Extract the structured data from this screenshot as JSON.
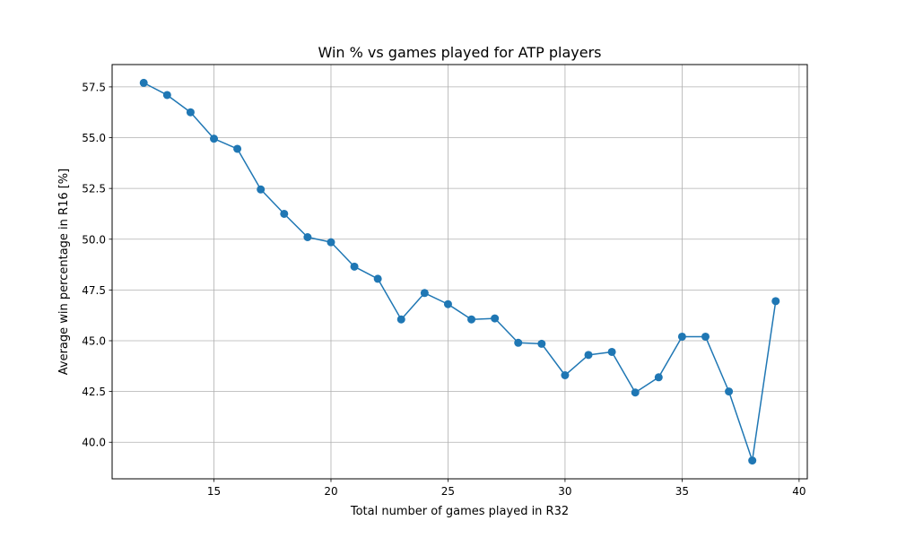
{
  "chart_data": {
    "type": "line",
    "title": "Win % vs games played for ATP players",
    "xlabel": "Total number of games played in R32",
    "ylabel": "Average win percentage in R16 [%]",
    "xlim": [
      10.65,
      40.35
    ],
    "ylim": [
      38.2,
      58.6
    ],
    "xticks": [
      15,
      20,
      25,
      30,
      35,
      40
    ],
    "yticks": [
      40.0,
      42.5,
      45.0,
      47.5,
      50.0,
      52.5,
      55.0,
      57.5
    ],
    "xtick_labels": [
      "15",
      "20",
      "25",
      "30",
      "35",
      "40"
    ],
    "ytick_labels": [
      "40.0",
      "42.5",
      "45.0",
      "47.5",
      "50.0",
      "52.5",
      "55.0",
      "57.5"
    ],
    "grid": true,
    "color": "#1f77b4",
    "marker": "circle",
    "series": [
      {
        "x": [
          12,
          13,
          14,
          15,
          16,
          17,
          18,
          19,
          20,
          21,
          22,
          23,
          24,
          25,
          26,
          27,
          28,
          29,
          30,
          31,
          32,
          33,
          34,
          35,
          36,
          37,
          38,
          39
        ],
        "values": [
          57.7,
          57.1,
          56.25,
          54.95,
          54.45,
          52.45,
          51.25,
          50.1,
          49.85,
          48.65,
          48.05,
          46.05,
          47.35,
          46.8,
          46.05,
          46.1,
          44.9,
          44.85,
          43.3,
          44.3,
          44.45,
          42.45,
          43.2,
          45.2,
          45.2,
          42.5,
          39.1,
          46.95
        ]
      }
    ]
  }
}
